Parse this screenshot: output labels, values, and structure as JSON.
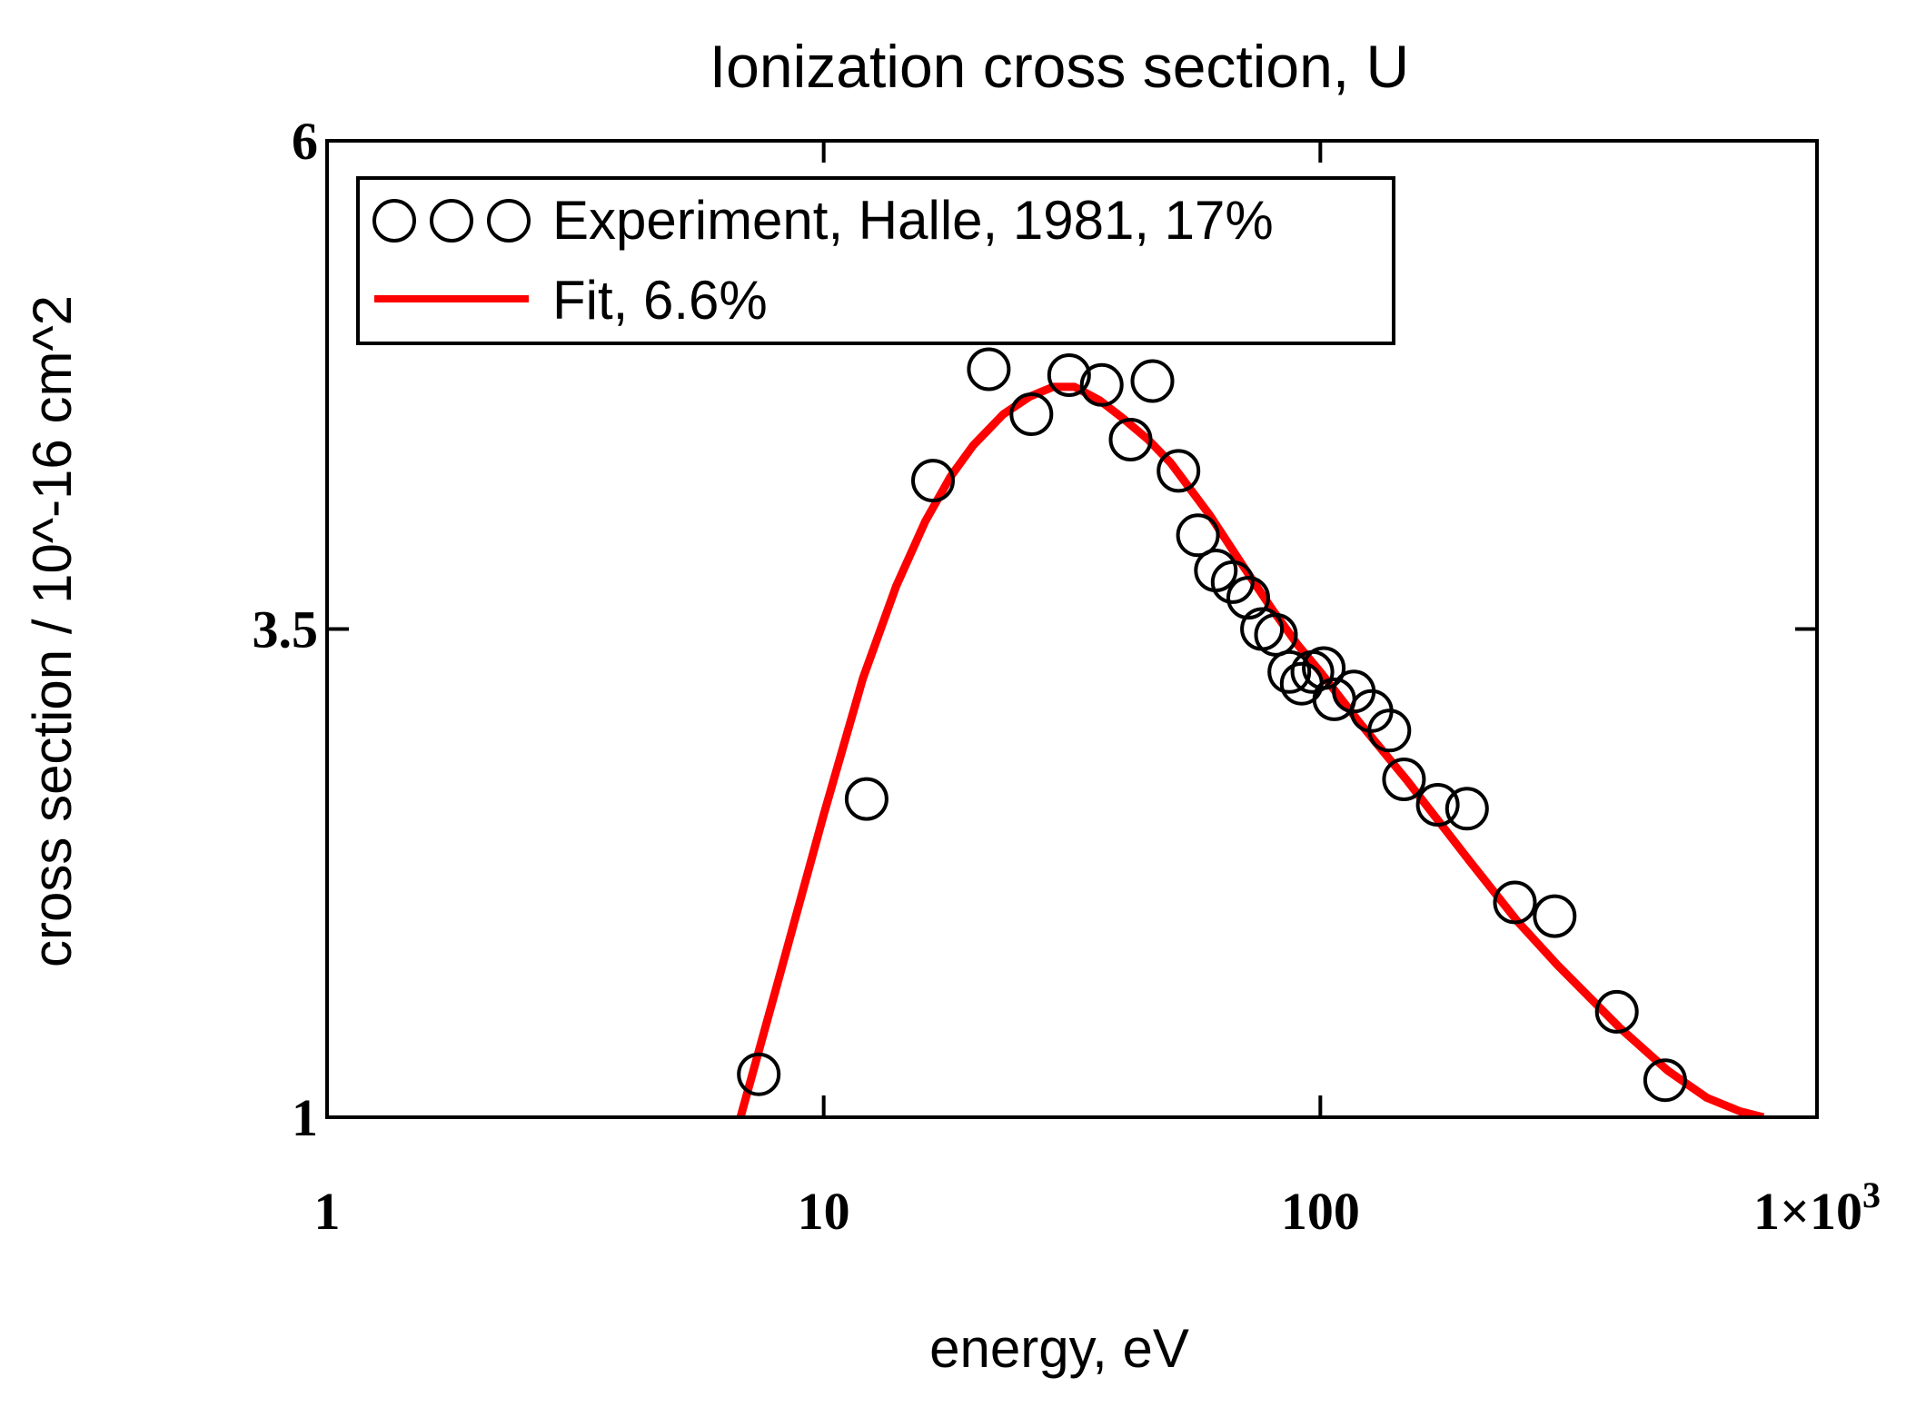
{
  "chart_data": {
    "type": "line",
    "title": "Ionization cross section, U",
    "xlabel": "energy, eV",
    "ylabel": "cross section / 10^-16 cm^2",
    "xscale": "log",
    "xlim": [
      1,
      1000
    ],
    "ylim": [
      1,
      6
    ],
    "x_ticks": [
      {
        "value": 1,
        "label": "1"
      },
      {
        "value": 10,
        "label": "10"
      },
      {
        "value": 100,
        "label": "100"
      },
      {
        "value": 1000,
        "label": "1×10",
        "exp": "3"
      }
    ],
    "y_ticks": [
      {
        "value": 1,
        "label": "1"
      },
      {
        "value": 3.5,
        "label": "3.5"
      },
      {
        "value": 6,
        "label": "6"
      }
    ],
    "legend_position": "top-left",
    "series": [
      {
        "name": "Experiment, Halle, 1981, 17%",
        "kind": "scatter",
        "marker": "open-circle",
        "color": "#000000",
        "x": [
          7.4,
          12.2,
          16.6,
          21.5,
          26.2,
          31.2,
          36.3,
          41.5,
          45.9,
          51.8,
          56.7,
          61.6,
          66.6,
          71.6,
          76.3,
          81.4,
          86.6,
          91.7,
          96.4,
          101.6,
          106.7,
          116.8,
          126.8,
          137.7,
          147.4,
          172.4,
          197.4,
          246.5,
          296.4,
          395.3,
          494.6
        ],
        "y": [
          1.22,
          2.63,
          4.26,
          4.83,
          4.6,
          4.8,
          4.75,
          4.47,
          4.77,
          4.31,
          3.98,
          3.8,
          3.74,
          3.66,
          3.5,
          3.47,
          3.28,
          3.22,
          3.28,
          3.3,
          3.14,
          3.18,
          3.08,
          2.98,
          2.73,
          2.6,
          2.58,
          2.1,
          2.03,
          1.54,
          1.19
        ]
      },
      {
        "name": "Fit, 6.6%",
        "kind": "line",
        "color": "#ff0000",
        "x": [
          6.8,
          8.0,
          10.0,
          12.0,
          14.0,
          16.0,
          18.0,
          20.0,
          23.0,
          26.0,
          29.0,
          32.0,
          36.0,
          40.0,
          45.0,
          50.0,
          60.0,
          70.0,
          80.0,
          90.0,
          100.0,
          120.0,
          150.0,
          200.0,
          250.0,
          300.0,
          400.0,
          500.0,
          600.0,
          700.0,
          780.0
        ],
        "y": [
          1.0,
          1.65,
          2.55,
          3.25,
          3.72,
          4.05,
          4.28,
          4.44,
          4.6,
          4.69,
          4.74,
          4.74,
          4.67,
          4.58,
          4.47,
          4.35,
          4.08,
          3.82,
          3.6,
          3.42,
          3.28,
          3.02,
          2.72,
          2.31,
          2.0,
          1.78,
          1.46,
          1.24,
          1.1,
          1.03,
          1.0
        ]
      }
    ]
  }
}
